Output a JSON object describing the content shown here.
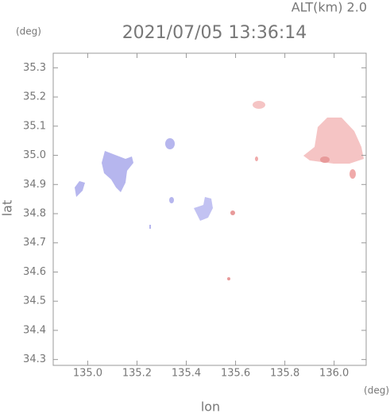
{
  "chart_data": {
    "type": "map",
    "title": "2021/07/05 13:36:14",
    "subtitle": "ALT(km) 2.0",
    "y_unit": "(deg)",
    "x_unit": "(deg)",
    "x_label": "lon",
    "y_label": "lat",
    "xlim": [
      134.86,
      136.13
    ],
    "ylim": [
      34.28,
      35.35
    ],
    "xticks": [
      {
        "value": 135.0,
        "label": "135.0"
      },
      135.2,
      135.4,
      135.6,
      135.8,
      {
        "value": 136.0,
        "label": "136.0"
      }
    ],
    "yticks": [
      34.3,
      34.4,
      34.5,
      34.6,
      34.7,
      34.8,
      34.9,
      {
        "value": 35.0,
        "label": "35.0"
      },
      35.1,
      35.2,
      35.3
    ]
  }
}
